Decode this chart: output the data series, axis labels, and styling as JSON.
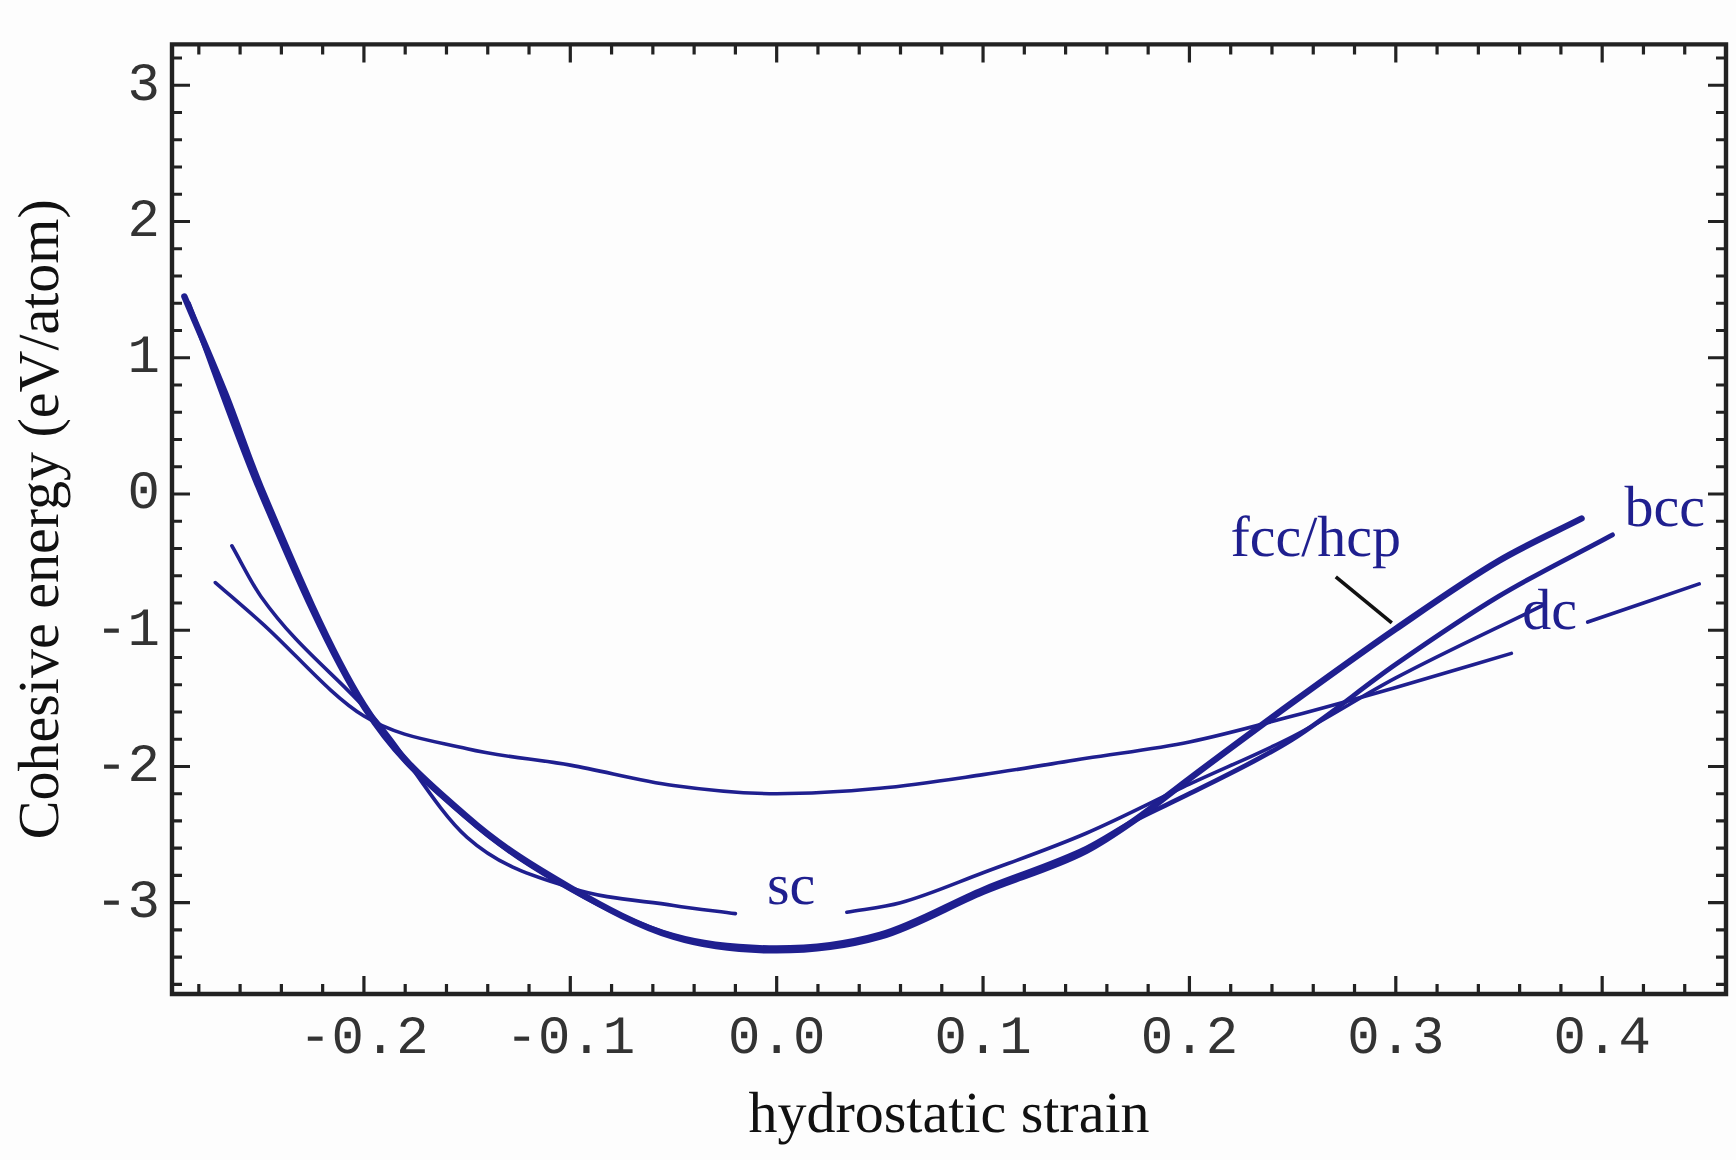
{
  "chart_data": {
    "type": "line",
    "xlabel": "hydrostatic strain",
    "ylabel": "Cohesive energy (eV/atom)",
    "series": [
      {
        "name": "fcc/hcp",
        "color": "#1f1f8f",
        "x": [
          -0.287,
          -0.267,
          -0.25,
          -0.2,
          -0.15,
          -0.1,
          -0.05,
          0,
          0.05,
          0.1,
          0.15,
          0.173,
          0.2,
          0.25,
          0.3,
          0.35,
          0.39
        ],
        "values": [
          1.45,
          0.73,
          0.05,
          -1.55,
          -2.37,
          -2.89,
          -3.25,
          -3.35,
          -3.25,
          -2.92,
          -2.62,
          -2.4,
          -2.09,
          -1.53,
          -0.99,
          -0.49,
          -0.18
        ]
      },
      {
        "name": "bcc",
        "color": "#1f1f8f",
        "x": [
          -0.285,
          -0.25,
          -0.2,
          -0.15,
          -0.1,
          -0.05,
          0,
          0.05,
          0.1,
          0.15,
          0.173,
          0.2,
          0.25,
          0.3,
          0.35,
          0.405
        ],
        "values": [
          1.4,
          0.0,
          -1.57,
          -2.38,
          -2.9,
          -3.24,
          -3.33,
          -3.23,
          -2.9,
          -2.6,
          -2.4,
          -2.2,
          -1.8,
          -1.25,
          -0.75,
          -0.3
        ]
      },
      {
        "name": "sc",
        "color": "#1f1f8f",
        "x": [
          -0.264,
          -0.25,
          -0.193,
          -0.15,
          -0.1,
          -0.05,
          -0.02,
          0.0,
          0.034,
          0.06,
          0.1,
          0.15,
          0.2,
          0.25,
          0.3,
          0.371
        ],
        "values": [
          -0.38,
          -0.75,
          -1.68,
          -2.52,
          -2.89,
          -3.02,
          -3.08,
          null,
          -3.07,
          -3.0,
          -2.78,
          -2.49,
          -2.13,
          -1.78,
          -1.35,
          -0.82
        ]
      },
      {
        "name": "dc",
        "color": "#1f1f8f",
        "x": [
          -0.272,
          -0.25,
          -0.2,
          -0.15,
          -0.1,
          -0.05,
          0,
          0.05,
          0.1,
          0.15,
          0.2,
          0.25,
          0.3,
          0.356,
          0.375,
          0.393,
          0.447
        ],
        "values": [
          -0.65,
          -0.94,
          -1.63,
          -1.87,
          -1.99,
          -2.14,
          -2.2,
          -2.16,
          -2.06,
          -1.94,
          -1.82,
          -1.63,
          -1.42,
          -1.17,
          null,
          -0.94,
          -0.66
        ]
      }
    ],
    "xlim": [
      -0.293,
      0.46
    ],
    "ylim": [
      -3.67,
      3.3
    ],
    "xticks": [
      {
        "value": -0.28,
        "label": null
      },
      {
        "value": -0.26,
        "label": null
      },
      {
        "value": -0.24,
        "label": null
      },
      {
        "value": -0.22,
        "label": null
      },
      {
        "value": -0.2,
        "label": "-0.2"
      },
      {
        "value": -0.18,
        "label": null
      },
      {
        "value": -0.16,
        "label": null
      },
      {
        "value": -0.14,
        "label": null
      },
      {
        "value": -0.12,
        "label": null
      },
      {
        "value": -0.1,
        "label": "-0.1"
      },
      {
        "value": -0.08,
        "label": null
      },
      {
        "value": -0.06,
        "label": null
      },
      {
        "value": -0.04,
        "label": null
      },
      {
        "value": -0.02,
        "label": null
      },
      {
        "value": 0,
        "label": "0.0"
      },
      {
        "value": 0.02,
        "label": null
      },
      {
        "value": 0.04,
        "label": null
      },
      {
        "value": 0.06,
        "label": null
      },
      {
        "value": 0.08,
        "label": null
      },
      {
        "value": 0.1,
        "label": "0.1"
      },
      {
        "value": 0.12,
        "label": null
      },
      {
        "value": 0.14,
        "label": null
      },
      {
        "value": 0.16,
        "label": null
      },
      {
        "value": 0.18,
        "label": null
      },
      {
        "value": 0.2,
        "label": "0.2"
      },
      {
        "value": 0.22,
        "label": null
      },
      {
        "value": 0.24,
        "label": null
      },
      {
        "value": 0.26,
        "label": null
      },
      {
        "value": 0.28,
        "label": null
      },
      {
        "value": 0.3,
        "label": "0.3"
      },
      {
        "value": 0.32,
        "label": null
      },
      {
        "value": 0.34,
        "label": null
      },
      {
        "value": 0.36,
        "label": null
      },
      {
        "value": 0.38,
        "label": null
      },
      {
        "value": 0.4,
        "label": "0.4"
      },
      {
        "value": 0.42,
        "label": null
      },
      {
        "value": 0.44,
        "label": null
      }
    ],
    "yticks": [
      {
        "value": -3.6,
        "label": null
      },
      {
        "value": -3.4,
        "label": null
      },
      {
        "value": -3.2,
        "label": null
      },
      -3,
      {
        "value": -2.8,
        "label": null
      },
      {
        "value": -2.6,
        "label": null
      },
      {
        "value": -2.4,
        "label": null
      },
      {
        "value": -2.2,
        "label": null
      },
      -2,
      {
        "value": -1.8,
        "label": null
      },
      {
        "value": -1.6,
        "label": null
      },
      {
        "value": -1.4,
        "label": null
      },
      {
        "value": -1.2,
        "label": null
      },
      -1,
      {
        "value": -0.8,
        "label": null
      },
      {
        "value": -0.6,
        "label": null
      },
      {
        "value": -0.4,
        "label": null
      },
      {
        "value": -0.2,
        "label": null
      },
      0,
      {
        "value": 0.2,
        "label": null
      },
      {
        "value": 0.4,
        "label": null
      },
      {
        "value": 0.6,
        "label": null
      },
      {
        "value": 0.8,
        "label": null
      },
      1,
      {
        "value": 1.2,
        "label": null
      },
      {
        "value": 1.4,
        "label": null
      },
      {
        "value": 1.6,
        "label": null
      },
      {
        "value": 1.8,
        "label": null
      },
      2,
      {
        "value": 2.2,
        "label": null
      },
      {
        "value": 2.4,
        "label": null
      },
      {
        "value": 2.6,
        "label": null
      },
      {
        "value": 2.8,
        "label": null
      },
      3,
      {
        "value": 3.2,
        "label": null
      }
    ],
    "grid": false,
    "legend": false,
    "marker": "none",
    "line_style": "solid"
  }
}
